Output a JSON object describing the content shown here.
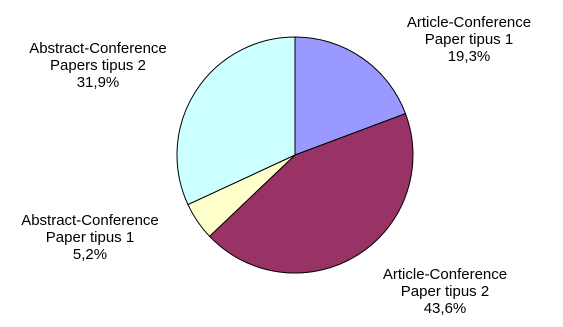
{
  "chart_data": {
    "type": "pie",
    "slices": [
      {
        "label_lines": [
          "Article-Conference",
          "Paper tipus 1"
        ],
        "value_label": "19,3%",
        "value": 19.3,
        "color": "#9999FF"
      },
      {
        "label_lines": [
          "Article-Conference",
          "Paper tipus 2"
        ],
        "value_label": "43,6%",
        "value": 43.6,
        "color": "#993366"
      },
      {
        "label_lines": [
          "Abstract-Conference",
          "Paper tipus 1"
        ],
        "value_label": "5,2%",
        "value": 5.2,
        "color": "#FFFFCC"
      },
      {
        "label_lines": [
          "Abstract-Conference",
          "Papers tipus 2"
        ],
        "value_label": "31,9%",
        "value": 31.9,
        "color": "#CCFFFF"
      }
    ],
    "start_angle_deg": 0,
    "direction": "clockwise",
    "legend": "none"
  }
}
